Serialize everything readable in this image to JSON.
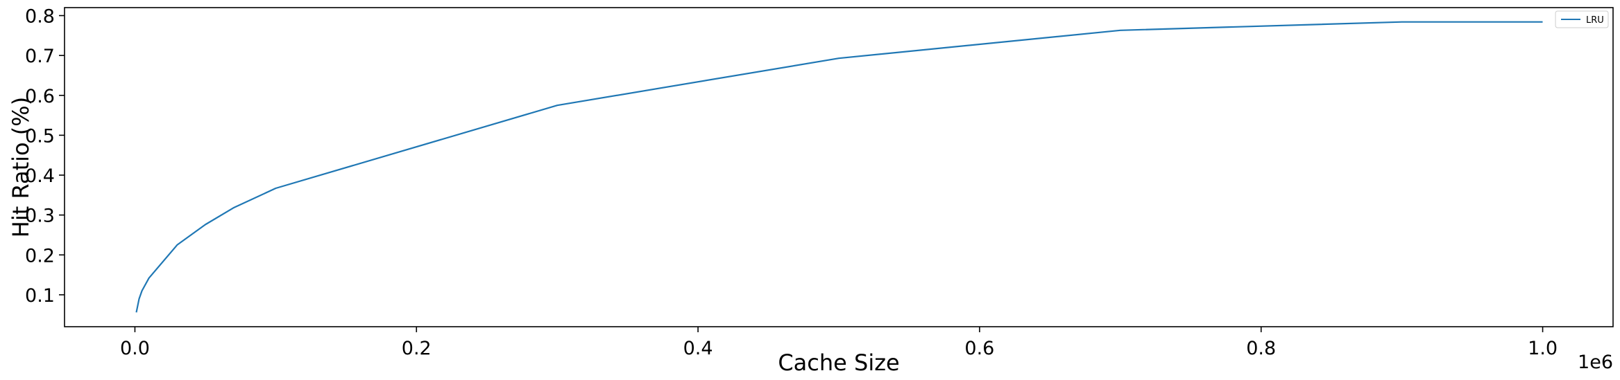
{
  "chart_data": {
    "type": "line",
    "title": "",
    "xlabel": "Cache Size",
    "ylabel": "Hit Ratio (%)",
    "x_offset_label": "1e6",
    "xlim": [
      -0.05,
      1.05
    ],
    "ylim": [
      0.02,
      0.82
    ],
    "x_ticks": [
      0.0,
      0.2,
      0.4,
      0.6,
      0.8,
      1.0
    ],
    "x_tick_labels": [
      "0.0",
      "0.2",
      "0.4",
      "0.6",
      "0.8",
      "1.0"
    ],
    "y_ticks": [
      0.1,
      0.2,
      0.3,
      0.4,
      0.5,
      0.6,
      0.7,
      0.8
    ],
    "y_tick_labels": [
      "0.1",
      "0.2",
      "0.3",
      "0.4",
      "0.5",
      "0.6",
      "0.7",
      "0.8"
    ],
    "grid": false,
    "legend_position": "top-right",
    "series": [
      {
        "name": "LRU",
        "color": "#1f77b4",
        "x": [
          0.001,
          0.003,
          0.005,
          0.01,
          0.03,
          0.05,
          0.07,
          0.1,
          0.3,
          0.5,
          0.7,
          0.9,
          1.0
        ],
        "y": [
          0.056,
          0.09,
          0.11,
          0.142,
          0.225,
          0.276,
          0.318,
          0.367,
          0.575,
          0.693,
          0.763,
          0.784,
          0.784
        ]
      }
    ]
  }
}
